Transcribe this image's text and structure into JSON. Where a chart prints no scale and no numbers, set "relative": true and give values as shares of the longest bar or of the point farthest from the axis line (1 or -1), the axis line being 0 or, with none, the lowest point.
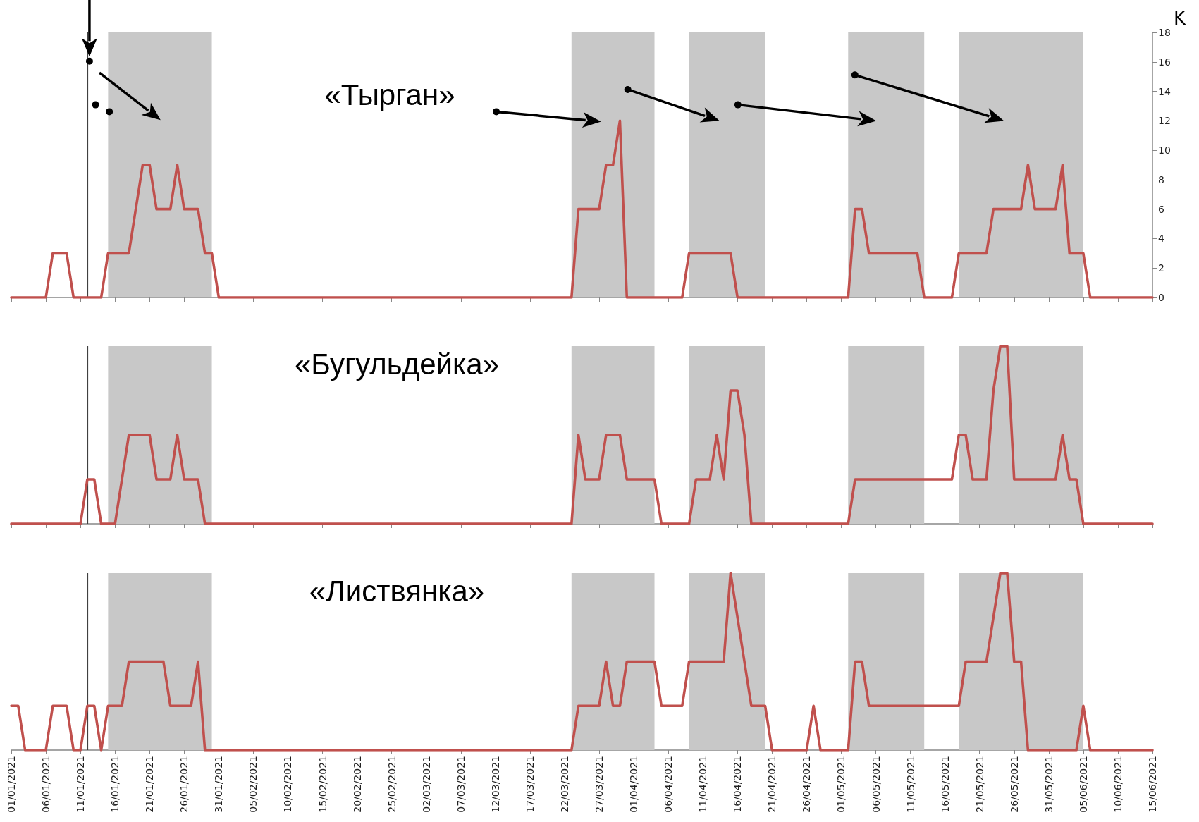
{
  "chart_data": [
    {
      "type": "line",
      "title": "«Тырган»",
      "ylabel": "K",
      "xlim": [
        "2021-01-01",
        "2021-06-15"
      ],
      "xticks": [
        {
          "value": "2021-01-01",
          "label": null
        },
        {
          "value": "2021-01-06",
          "label": null
        },
        {
          "value": "2021-01-11",
          "label": null
        },
        {
          "value": "2021-01-16",
          "label": null
        },
        {
          "value": "2021-01-21",
          "label": null
        },
        {
          "value": "2021-01-26",
          "label": null
        },
        {
          "value": "2021-01-31",
          "label": null
        },
        {
          "value": "2021-02-05",
          "label": null
        },
        {
          "value": "2021-02-10",
          "label": null
        },
        {
          "value": "2021-02-15",
          "label": null
        },
        {
          "value": "2021-02-20",
          "label": null
        },
        {
          "value": "2021-02-25",
          "label": null
        },
        {
          "value": "2021-03-02",
          "label": null
        },
        {
          "value": "2021-03-07",
          "label": null
        },
        {
          "value": "2021-03-12",
          "label": null
        },
        {
          "value": "2021-03-17",
          "label": null
        },
        {
          "value": "2021-03-22",
          "label": null
        },
        {
          "value": "2021-03-27",
          "label": null
        },
        {
          "value": "2021-04-01",
          "label": null
        },
        {
          "value": "2021-04-06",
          "label": null
        },
        {
          "value": "2021-04-11",
          "label": null
        },
        {
          "value": "2021-04-16",
          "label": null
        },
        {
          "value": "2021-04-21",
          "label": null
        },
        {
          "value": "2021-04-26",
          "label": null
        },
        {
          "value": "2021-05-01",
          "label": null
        },
        {
          "value": "2021-05-06",
          "label": null
        },
        {
          "value": "2021-05-11",
          "label": null
        },
        {
          "value": "2021-05-16",
          "label": null
        },
        {
          "value": "2021-05-21",
          "label": null
        },
        {
          "value": "2021-05-26",
          "label": null
        },
        {
          "value": "2021-05-31",
          "label": null
        },
        {
          "value": "2021-06-05",
          "label": null
        },
        {
          "value": "2021-06-10",
          "label": null
        },
        {
          "value": "2021-06-15",
          "label": null
        }
      ],
      "ylim": [
        0,
        18
      ],
      "yticks": [
        0,
        2,
        4,
        6,
        8,
        10,
        12,
        14,
        16,
        18
      ],
      "tick_labels": "y",
      "grid": false,
      "marker": "none",
      "line_style": "solid",
      "series": [
        {
          "color": "#c0504d",
          "x": [
            "2021-01-01",
            "2021-01-06",
            "2021-01-07",
            "2021-01-09",
            "2021-01-10",
            "2021-01-14",
            "2021-01-15",
            "2021-01-18",
            "2021-01-20",
            "2021-01-21",
            "2021-01-22",
            "2021-01-24",
            "2021-01-25",
            "2021-01-26",
            "2021-01-28",
            "2021-01-29",
            "2021-01-30",
            "2021-01-31",
            "2021-03-23",
            "2021-03-24",
            "2021-03-27",
            "2021-03-28",
            "2021-03-29",
            "2021-03-30",
            "2021-03-31",
            "2021-04-08",
            "2021-04-09",
            "2021-04-15",
            "2021-04-16",
            "2021-05-02",
            "2021-05-03",
            "2021-05-04",
            "2021-05-05",
            "2021-05-12",
            "2021-05-13",
            "2021-05-17",
            "2021-05-18",
            "2021-05-22",
            "2021-05-23",
            "2021-05-27",
            "2021-05-28",
            "2021-05-29",
            "2021-06-01",
            "2021-06-02",
            "2021-06-03",
            "2021-06-05",
            "2021-06-06",
            "2021-06-15"
          ],
          "values": [
            0,
            0,
            3,
            3,
            0,
            0,
            3,
            3,
            9,
            9,
            6,
            6,
            9,
            6,
            6,
            3,
            3,
            0,
            0,
            6,
            6,
            9,
            9,
            12,
            0,
            0,
            3,
            3,
            0,
            0,
            6,
            6,
            3,
            3,
            0,
            0,
            3,
            3,
            6,
            6,
            9,
            6,
            6,
            9,
            3,
            3,
            0,
            0
          ]
        }
      ],
      "bands": [
        {
          "axis": "x",
          "from": "2021-01-15",
          "to": "2021-01-30",
          "color": "#c8c8c8"
        },
        {
          "axis": "x",
          "from": "2021-03-23",
          "to": "2021-04-04",
          "color": "#c8c8c8"
        },
        {
          "axis": "x",
          "from": "2021-04-09",
          "to": "2021-04-20",
          "color": "#c8c8c8"
        },
        {
          "axis": "x",
          "from": "2021-05-02",
          "to": "2021-05-13",
          "color": "#c8c8c8"
        },
        {
          "axis": "x",
          "from": "2021-05-18",
          "to": "2021-06-05",
          "color": "#c8c8c8"
        }
      ],
      "ref_lines": [
        {
          "axis": "x",
          "value": "2021-01-12",
          "color": "#404040"
        }
      ]
    },
    {
      "type": "line",
      "title": "«Бугульдейка»",
      "relative": true,
      "xlim": [
        "2021-01-01",
        "2021-06-15"
      ],
      "xticks": [
        {
          "value": "2021-01-01",
          "label": null
        },
        {
          "value": "2021-01-06",
          "label": null
        },
        {
          "value": "2021-01-11",
          "label": null
        },
        {
          "value": "2021-01-16",
          "label": null
        },
        {
          "value": "2021-01-21",
          "label": null
        },
        {
          "value": "2021-01-26",
          "label": null
        },
        {
          "value": "2021-01-31",
          "label": null
        },
        {
          "value": "2021-02-05",
          "label": null
        },
        {
          "value": "2021-02-10",
          "label": null
        },
        {
          "value": "2021-02-15",
          "label": null
        },
        {
          "value": "2021-02-20",
          "label": null
        },
        {
          "value": "2021-02-25",
          "label": null
        },
        {
          "value": "2021-03-02",
          "label": null
        },
        {
          "value": "2021-03-07",
          "label": null
        },
        {
          "value": "2021-03-12",
          "label": null
        },
        {
          "value": "2021-03-17",
          "label": null
        },
        {
          "value": "2021-03-22",
          "label": null
        },
        {
          "value": "2021-03-27",
          "label": null
        },
        {
          "value": "2021-04-01",
          "label": null
        },
        {
          "value": "2021-04-06",
          "label": null
        },
        {
          "value": "2021-04-11",
          "label": null
        },
        {
          "value": "2021-04-16",
          "label": null
        },
        {
          "value": "2021-04-21",
          "label": null
        },
        {
          "value": "2021-04-26",
          "label": null
        },
        {
          "value": "2021-05-01",
          "label": null
        },
        {
          "value": "2021-05-06",
          "label": null
        },
        {
          "value": "2021-05-11",
          "label": null
        },
        {
          "value": "2021-05-16",
          "label": null
        },
        {
          "value": "2021-05-21",
          "label": null
        },
        {
          "value": "2021-05-26",
          "label": null
        },
        {
          "value": "2021-05-31",
          "label": null
        },
        {
          "value": "2021-06-05",
          "label": null
        },
        {
          "value": "2021-06-10",
          "label": null
        },
        {
          "value": "2021-06-15",
          "label": null
        }
      ],
      "tick_labels": false,
      "grid": false,
      "marker": "none",
      "line_style": "solid",
      "series": [
        {
          "color": "#c0504d",
          "x": [
            "2021-01-01",
            "2021-01-11",
            "2021-01-12",
            "2021-01-13",
            "2021-01-14",
            "2021-01-16",
            "2021-01-18",
            "2021-01-21",
            "2021-01-22",
            "2021-01-24",
            "2021-01-25",
            "2021-01-26",
            "2021-01-28",
            "2021-01-29",
            "2021-03-23",
            "2021-03-24",
            "2021-03-25",
            "2021-03-27",
            "2021-03-28",
            "2021-03-30",
            "2021-03-31",
            "2021-04-04",
            "2021-04-05",
            "2021-04-09",
            "2021-04-10",
            "2021-04-12",
            "2021-04-13",
            "2021-04-14",
            "2021-04-15",
            "2021-04-16",
            "2021-04-17",
            "2021-04-18",
            "2021-05-02",
            "2021-05-03",
            "2021-05-17",
            "2021-05-18",
            "2021-05-19",
            "2021-05-20",
            "2021-05-22",
            "2021-05-23",
            "2021-05-24",
            "2021-05-25",
            "2021-05-26",
            "2021-06-01",
            "2021-06-02",
            "2021-06-03",
            "2021-06-04",
            "2021-06-05",
            "2021-06-15"
          ],
          "values": [
            0,
            0,
            0.25,
            0.25,
            0,
            0,
            0.5,
            0.5,
            0.25,
            0.25,
            0.5,
            0.25,
            0.25,
            0,
            0,
            0.5,
            0.25,
            0.25,
            0.5,
            0.5,
            0.25,
            0.25,
            0,
            0,
            0.25,
            0.25,
            0.5,
            0.25,
            0.75,
            0.75,
            0.5,
            0,
            0,
            0.25,
            0.25,
            0.5,
            0.5,
            0.25,
            0.25,
            0.75,
            1,
            1,
            0.25,
            0.25,
            0.5,
            0.25,
            0.25,
            0,
            0
          ]
        }
      ],
      "bands": [
        {
          "axis": "x",
          "from": "2021-01-15",
          "to": "2021-01-30",
          "color": "#c8c8c8"
        },
        {
          "axis": "x",
          "from": "2021-03-23",
          "to": "2021-04-04",
          "color": "#c8c8c8"
        },
        {
          "axis": "x",
          "from": "2021-04-09",
          "to": "2021-04-20",
          "color": "#c8c8c8"
        },
        {
          "axis": "x",
          "from": "2021-05-02",
          "to": "2021-05-13",
          "color": "#c8c8c8"
        },
        {
          "axis": "x",
          "from": "2021-05-18",
          "to": "2021-06-05",
          "color": "#c8c8c8"
        }
      ],
      "ref_lines": [
        {
          "axis": "x",
          "value": "2021-01-12",
          "color": "#404040"
        }
      ]
    },
    {
      "type": "line",
      "title": "«Листвянка»",
      "relative": true,
      "xlim": [
        "2021-01-01",
        "2021-06-15"
      ],
      "xticks": [
        {
          "value": "2021-01-01",
          "label": "01/01/2021"
        },
        {
          "value": "2021-01-06",
          "label": "06/01/2021"
        },
        {
          "value": "2021-01-11",
          "label": "11/01/2021"
        },
        {
          "value": "2021-01-16",
          "label": "16/01/2021"
        },
        {
          "value": "2021-01-21",
          "label": "21/01/2021"
        },
        {
          "value": "2021-01-26",
          "label": "26/01/2021"
        },
        {
          "value": "2021-01-31",
          "label": "31/01/2021"
        },
        {
          "value": "2021-02-05",
          "label": "05/02/2021"
        },
        {
          "value": "2021-02-10",
          "label": "10/02/2021"
        },
        {
          "value": "2021-02-15",
          "label": "15/02/2021"
        },
        {
          "value": "2021-02-20",
          "label": "20/02/2021"
        },
        {
          "value": "2021-02-25",
          "label": "25/02/2021"
        },
        {
          "value": "2021-03-02",
          "label": "02/03/2021"
        },
        {
          "value": "2021-03-07",
          "label": "07/03/2021"
        },
        {
          "value": "2021-03-12",
          "label": "12/03/2021"
        },
        {
          "value": "2021-03-17",
          "label": "17/03/2021"
        },
        {
          "value": "2021-03-22",
          "label": "22/03/2021"
        },
        {
          "value": "2021-03-27",
          "label": "27/03/2021"
        },
        {
          "value": "2021-04-01",
          "label": "01/04/2021"
        },
        {
          "value": "2021-04-06",
          "label": "06/04/2021"
        },
        {
          "value": "2021-04-11",
          "label": "11/04/2021"
        },
        {
          "value": "2021-04-16",
          "label": "16/04/2021"
        },
        {
          "value": "2021-04-21",
          "label": "21/04/2021"
        },
        {
          "value": "2021-04-26",
          "label": "26/04/2021"
        },
        {
          "value": "2021-05-01",
          "label": "01/05/2021"
        },
        {
          "value": "2021-05-06",
          "label": "06/05/2021"
        },
        {
          "value": "2021-05-11",
          "label": "11/05/2021"
        },
        {
          "value": "2021-05-16",
          "label": "16/05/2021"
        },
        {
          "value": "2021-05-21",
          "label": "21/05/2021"
        },
        {
          "value": "2021-05-26",
          "label": "26/05/2021"
        },
        {
          "value": "2021-05-31",
          "label": "31/05/2021"
        },
        {
          "value": "2021-06-05",
          "label": "05/06/2021"
        },
        {
          "value": "2021-06-10",
          "label": "10/06/2021"
        },
        {
          "value": "2021-06-15",
          "label": "15/06/2021"
        }
      ],
      "tick_labels": "x",
      "grid": false,
      "marker": "none",
      "line_style": "solid",
      "series": [
        {
          "color": "#c0504d",
          "x": [
            "2021-01-01",
            "2021-01-02",
            "2021-01-03",
            "2021-01-06",
            "2021-01-07",
            "2021-01-09",
            "2021-01-10",
            "2021-01-11",
            "2021-01-12",
            "2021-01-13",
            "2021-01-14",
            "2021-01-15",
            "2021-01-17",
            "2021-01-18",
            "2021-01-23",
            "2021-01-24",
            "2021-01-27",
            "2021-01-28",
            "2021-01-29",
            "2021-03-23",
            "2021-03-24",
            "2021-03-27",
            "2021-03-28",
            "2021-03-29",
            "2021-03-30",
            "2021-03-31",
            "2021-04-04",
            "2021-04-05",
            "2021-04-08",
            "2021-04-09",
            "2021-04-14",
            "2021-04-15",
            "2021-04-18",
            "2021-04-20",
            "2021-04-21",
            "2021-04-26",
            "2021-04-27",
            "2021-04-28",
            "2021-05-02",
            "2021-05-03",
            "2021-05-04",
            "2021-05-05",
            "2021-05-18",
            "2021-05-19",
            "2021-05-22",
            "2021-05-24",
            "2021-05-25",
            "2021-05-26",
            "2021-05-27",
            "2021-05-28",
            "2021-06-04",
            "2021-06-05",
            "2021-06-06",
            "2021-06-15"
          ],
          "values": [
            0.25,
            0.25,
            0,
            0,
            0.25,
            0.25,
            0,
            0,
            0.25,
            0.25,
            0,
            0.25,
            0.25,
            0.5,
            0.5,
            0.25,
            0.25,
            0.5,
            0,
            0,
            0.25,
            0.25,
            0.5,
            0.25,
            0.25,
            0.5,
            0.5,
            0.25,
            0.25,
            0.5,
            0.5,
            1,
            0.25,
            0.25,
            0,
            0,
            0.25,
            0,
            0,
            0.5,
            0.5,
            0.25,
            0.25,
            0.5,
            0.5,
            1,
            1,
            0.5,
            0.5,
            0,
            0,
            0.25,
            0,
            0
          ]
        }
      ],
      "bands": [
        {
          "axis": "x",
          "from": "2021-01-15",
          "to": "2021-01-30",
          "color": "#c8c8c8"
        },
        {
          "axis": "x",
          "from": "2021-03-23",
          "to": "2021-04-04",
          "color": "#c8c8c8"
        },
        {
          "axis": "x",
          "from": "2021-04-09",
          "to": "2021-04-20",
          "color": "#c8c8c8"
        },
        {
          "axis": "x",
          "from": "2021-05-02",
          "to": "2021-05-13",
          "color": "#c8c8c8"
        },
        {
          "axis": "x",
          "from": "2021-05-18",
          "to": "2021-06-05",
          "color": "#c8c8c8"
        }
      ],
      "ref_lines": [
        {
          "axis": "x",
          "value": "2021-01-12",
          "color": "#404040"
        }
      ]
    }
  ]
}
